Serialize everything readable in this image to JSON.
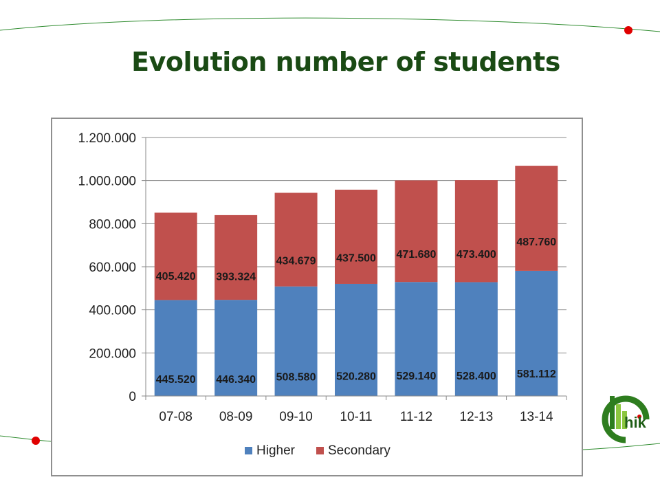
{
  "slide": {
    "title": "Evolution number of students"
  },
  "logo": {
    "text": "hik",
    "color": "#2e7d1f"
  },
  "chart_data": {
    "type": "bar",
    "stacked": true,
    "categories": [
      "07-08",
      "08-09",
      "09-10",
      "10-11",
      "11-12",
      "12-13",
      "13-14"
    ],
    "series": [
      {
        "name": "Higher",
        "color": "#4f81bd",
        "values": [
          445520,
          446340,
          508580,
          520280,
          529140,
          528400,
          581112
        ],
        "labels": [
          "445.520",
          "446.340",
          "508.580",
          "520.280",
          "529.140",
          "528.400",
          "581.112"
        ]
      },
      {
        "name": "Secondary",
        "color": "#c0504d",
        "values": [
          405420,
          393324,
          434679,
          437500,
          471680,
          473400,
          487760
        ],
        "labels": [
          "405.420",
          "393.324",
          "434.679",
          "437.500",
          "471.680",
          "473.400",
          "487.760"
        ]
      }
    ],
    "ylim": [
      0,
      1200000
    ],
    "yticks": [
      0,
      200000,
      400000,
      600000,
      800000,
      1000000,
      1200000
    ],
    "ytick_labels": [
      "0",
      "200.000",
      "400.000",
      "600.000",
      "800.000",
      "1.000.000",
      "1.200.000"
    ],
    "grid": true,
    "legend": "bottom",
    "xlabel": "",
    "ylabel": ""
  }
}
